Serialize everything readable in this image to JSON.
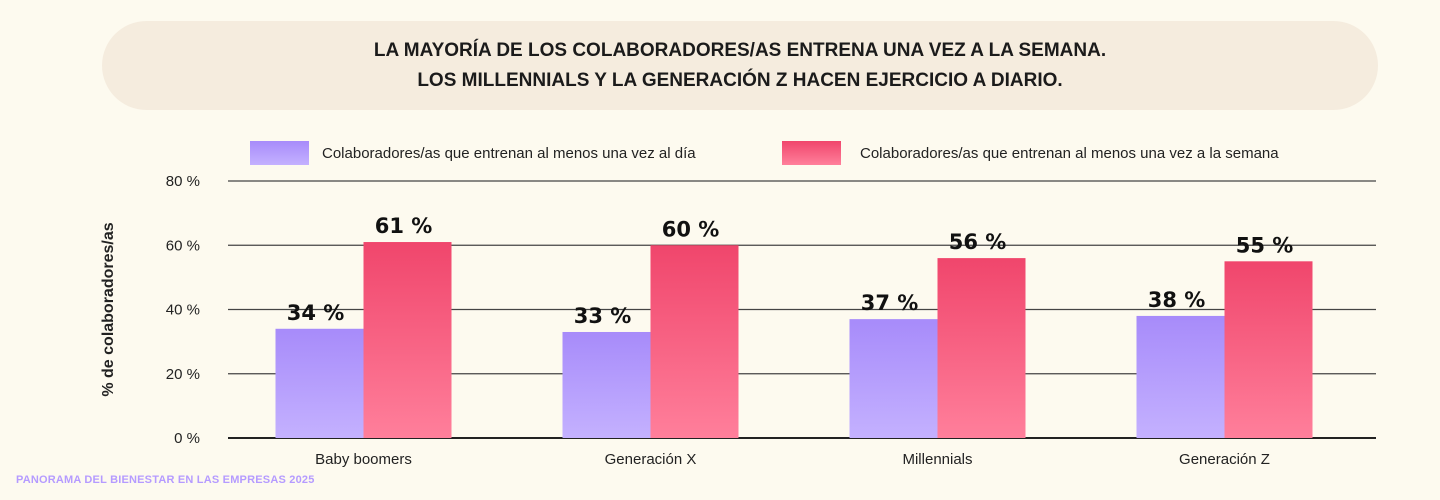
{
  "header": {
    "title_line1": "LA MAYORÍA DE LOS COLABORADORES/AS ENTRENA UNA VEZ A LA SEMANA.",
    "title_line2": "LOS MILLENNIALS Y LA GENERACIÓN Z HACEN EJERCICIO A DIARIO."
  },
  "footer": {
    "text": "PANORAMA DEL BIENESTAR EN LAS EMPRESAS 2025"
  },
  "colors": {
    "daily_top": "#a78bfa",
    "daily_bottom": "#c4b1ff",
    "weekly_top": "#f0466c",
    "weekly_bottom": "#ff7f9b",
    "axis": "#222222",
    "grid": "#444444"
  },
  "chart_data": {
    "type": "bar",
    "categories": [
      "Baby boomers",
      "Generación X",
      "Millennials",
      "Generación Z"
    ],
    "series": [
      {
        "name": "Colaboradores/as que entrenan al menos una vez al día",
        "values": [
          34,
          33,
          37,
          38
        ],
        "labels": [
          "34 %",
          "33 %",
          "37 %",
          "38 %"
        ]
      },
      {
        "name": "Colaboradores/as que entrenan al menos una vez a la semana",
        "values": [
          61,
          60,
          56,
          55
        ],
        "labels": [
          "61 %",
          "60 %",
          "56 %",
          "55 %"
        ]
      }
    ],
    "ylabel": "% de colaboradores/as",
    "xlabel": "",
    "ylim": [
      0,
      80
    ],
    "yticks": [
      0,
      20,
      40,
      60,
      80
    ],
    "ytick_labels": [
      "0 %",
      "20 %",
      "40 %",
      "60 %",
      "80 %"
    ],
    "grid": true,
    "legend": "top"
  }
}
